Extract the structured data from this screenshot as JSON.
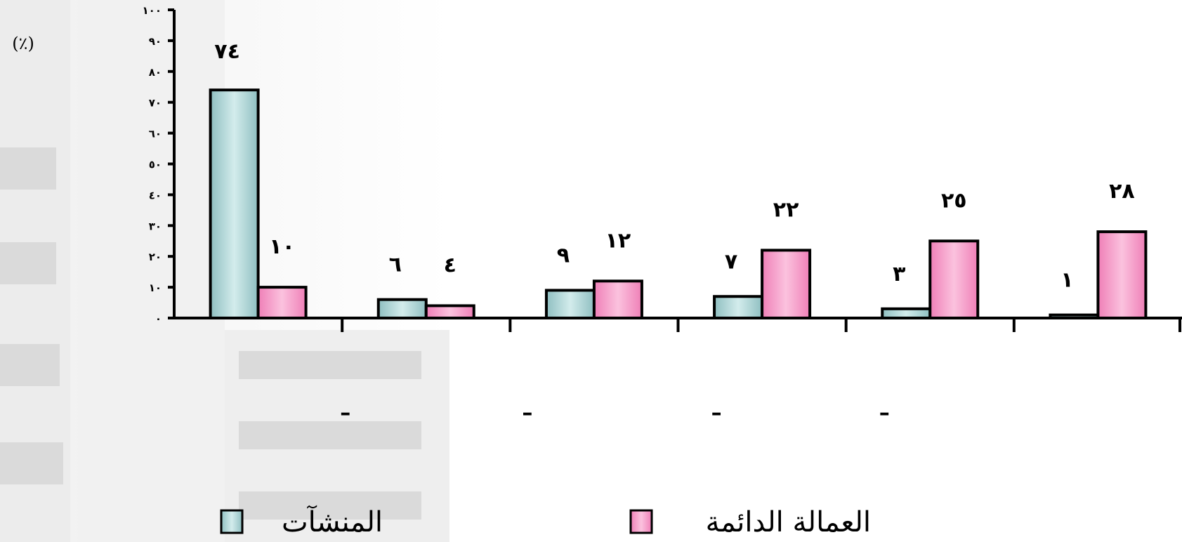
{
  "chart_data": {
    "type": "bar",
    "ylabel": "(٪)",
    "ylim": [
      0,
      100
    ],
    "yticks": [
      0,
      10,
      20,
      30,
      40,
      50,
      60,
      70,
      80,
      90,
      100
    ],
    "ytick_labels": [
      "٠",
      "١٠",
      "٢٠",
      "٣٠",
      "٤٠",
      "٥٠",
      "٦٠",
      "٧٠",
      "٨٠",
      "٩٠",
      "١٠٠"
    ],
    "categories": [
      "",
      "–",
      "–",
      "–",
      "–",
      ""
    ],
    "series": [
      {
        "name": "المنشآت",
        "color": "#aacfd0",
        "values": [
          74,
          6,
          9,
          7,
          3,
          1
        ],
        "labels": [
          "٧٤",
          "٦",
          "٩",
          "٧",
          "٣",
          "١"
        ]
      },
      {
        "name": "العمالة الدائمة",
        "color": "#f59bc8",
        "values": [
          10,
          4,
          12,
          22,
          25,
          28
        ],
        "labels": [
          "١٠",
          "٤",
          "١٢",
          "٢٢",
          "٢٥",
          "٢٨"
        ]
      }
    ],
    "grid": false,
    "legend_position": "bottom"
  },
  "colors": {
    "axis": "#000000",
    "bar_outline": "#000000",
    "background": "#ffffff"
  }
}
